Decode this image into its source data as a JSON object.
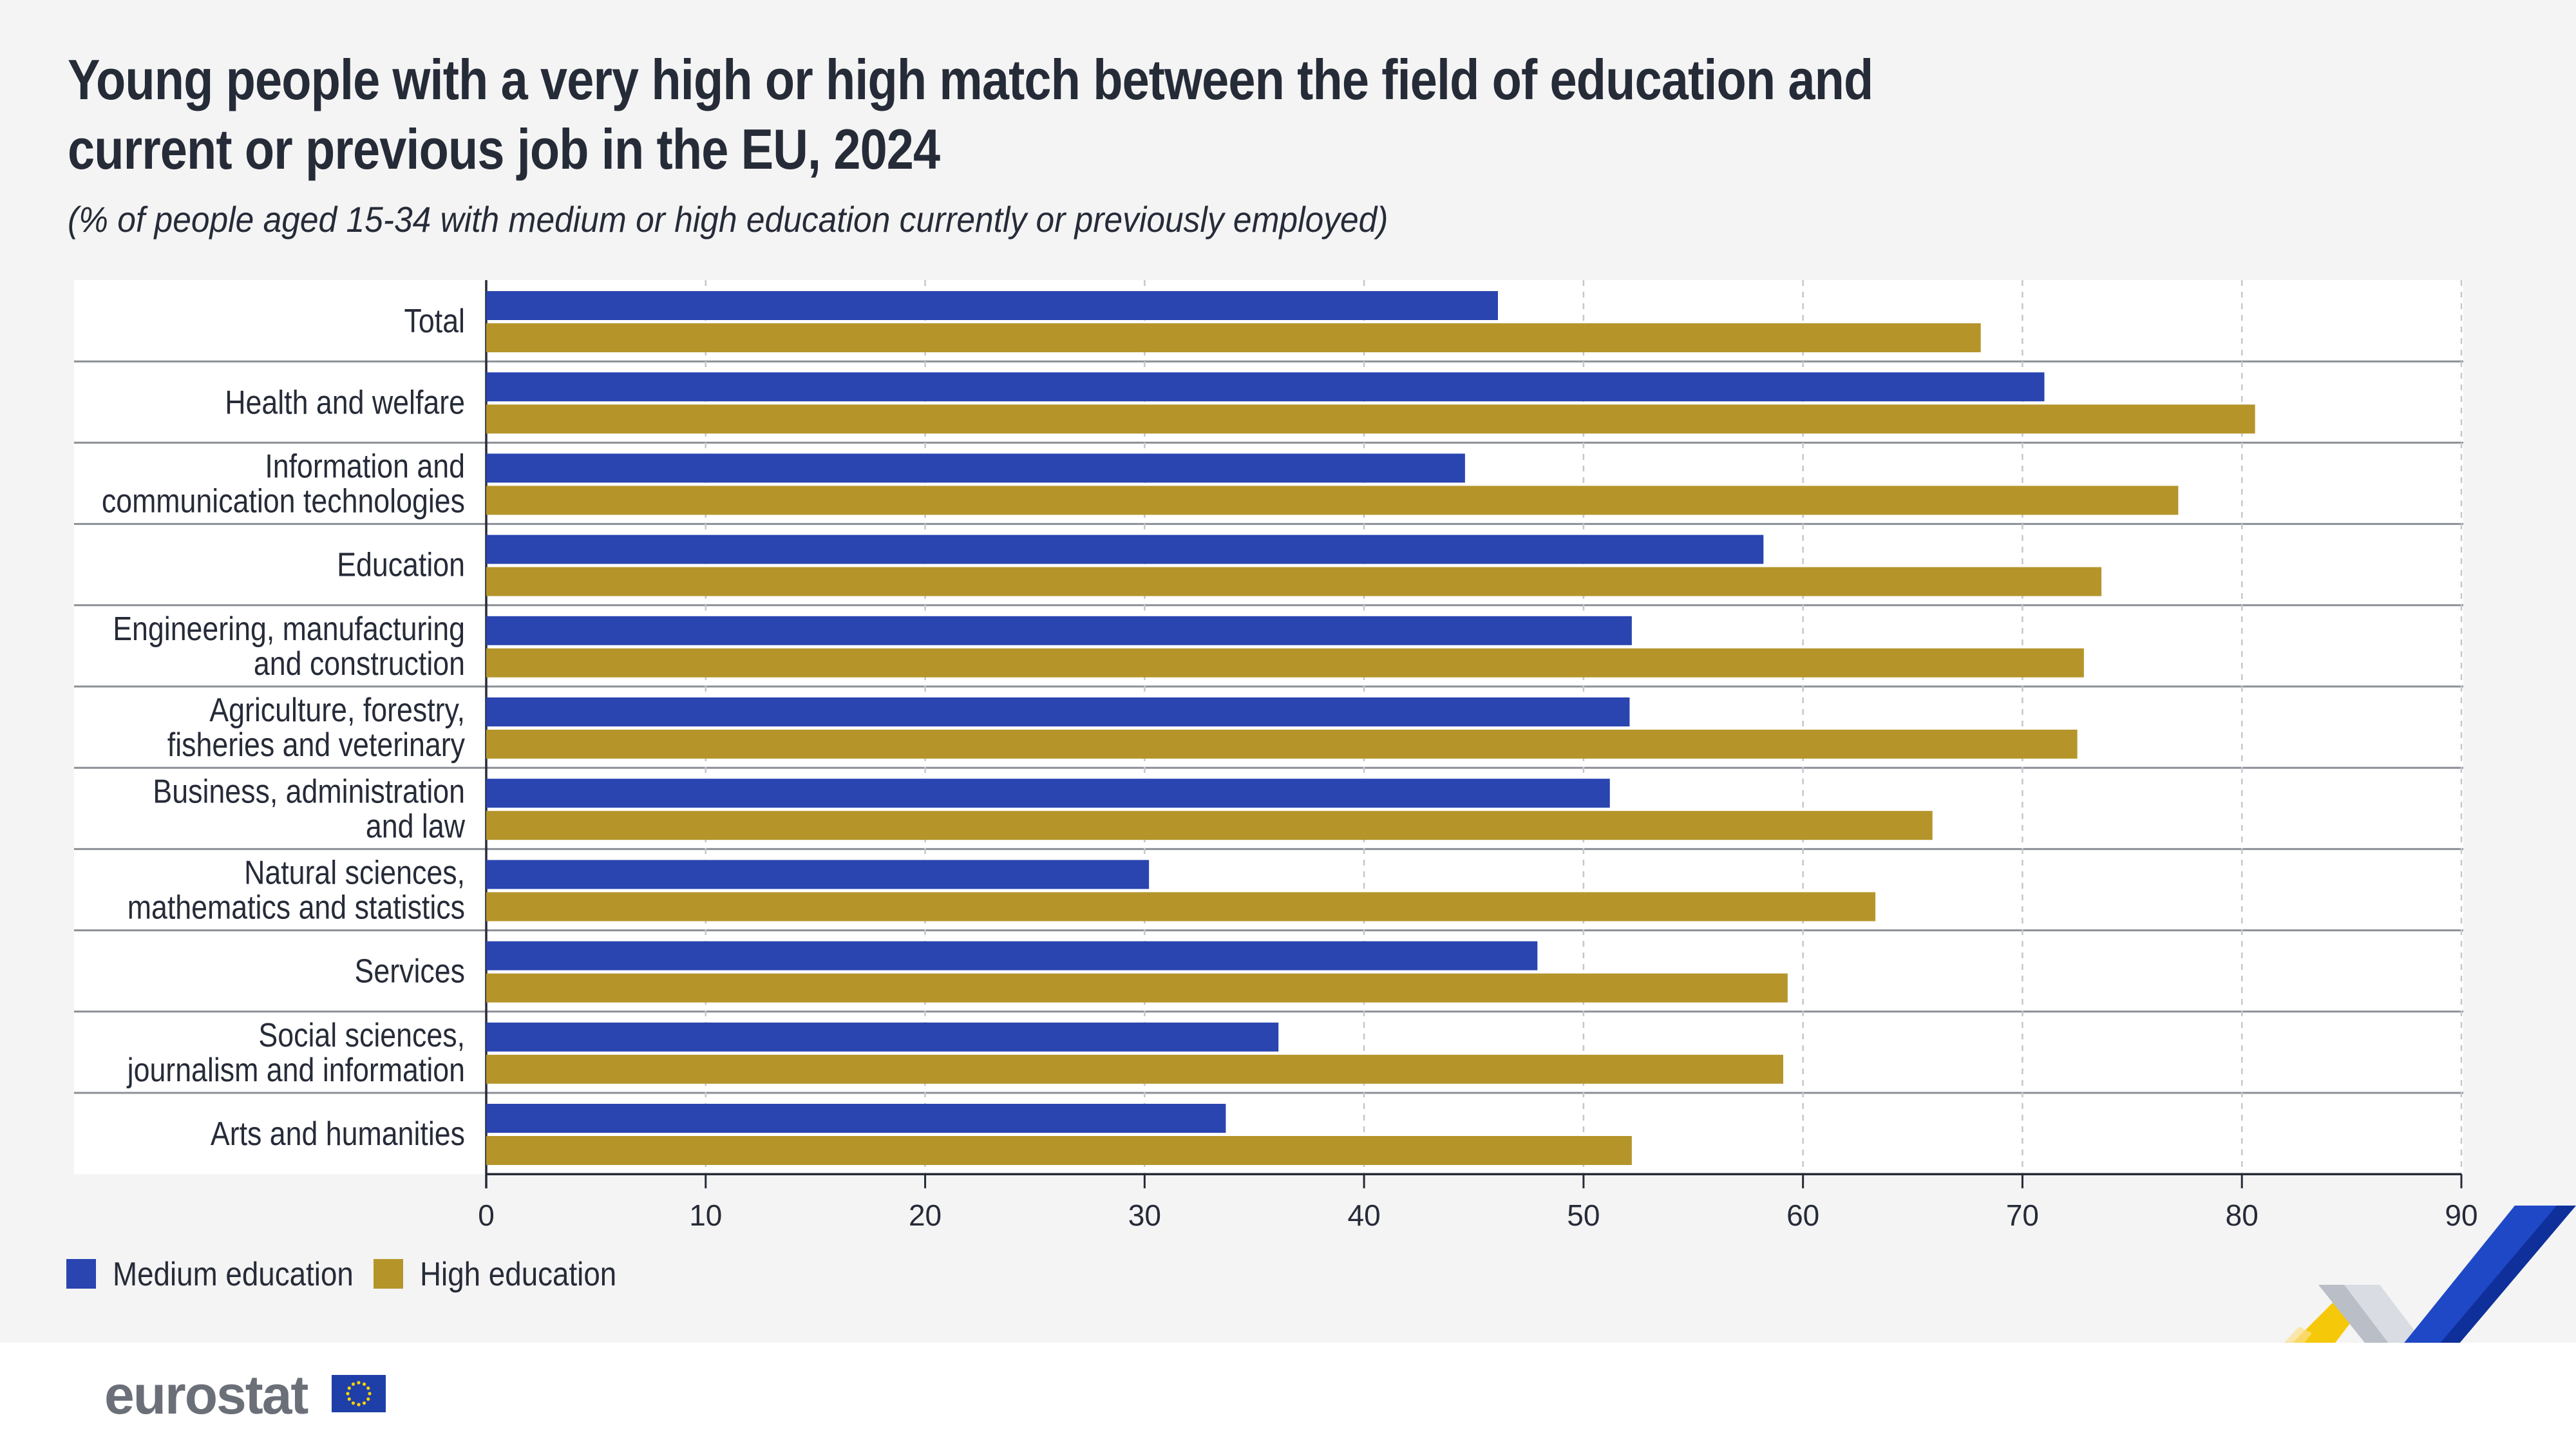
{
  "header": {
    "title": "Young people with a very high or high match between the field of education and current or previous job in the EU, 2024",
    "subtitle": "(% of people aged 15-34 with medium or high education currently or previously employed)"
  },
  "colors": {
    "medium": "#2a45b0",
    "high": "#b5952a",
    "background": "#f4f4f4",
    "text": "#262b38"
  },
  "chart_data": {
    "type": "bar",
    "orientation": "horizontal",
    "categories": [
      "Total",
      "Health and welfare",
      "Information and communication technologies",
      "Education",
      "Engineering, manufacturing and construction",
      "Agriculture, forestry, fisheries and veterinary",
      "Business, administration and law",
      "Natural sciences, mathematics and statistics",
      "Services",
      "Social sciences, journalism and information",
      "Arts and humanities"
    ],
    "category_lines": [
      [
        "Total"
      ],
      [
        "Health and welfare"
      ],
      [
        "Information and",
        "communication technologies"
      ],
      [
        "Education"
      ],
      [
        "Engineering, manufacturing",
        "and construction"
      ],
      [
        "Agriculture, forestry,",
        "fisheries and veterinary"
      ],
      [
        "Business, administration",
        "and law"
      ],
      [
        "Natural sciences,",
        "mathematics and statistics"
      ],
      [
        "Services"
      ],
      [
        "Social sciences,",
        "journalism and information"
      ],
      [
        "Arts and humanities"
      ]
    ],
    "series": [
      {
        "name": "Medium education",
        "values": [
          46.1,
          71.0,
          44.6,
          58.2,
          52.2,
          52.1,
          51.2,
          30.2,
          47.9,
          36.1,
          33.7
        ]
      },
      {
        "name": "High education",
        "values": [
          68.1,
          80.6,
          77.1,
          73.6,
          72.8,
          72.5,
          65.9,
          63.3,
          59.3,
          59.1,
          52.2
        ]
      }
    ],
    "xlim": [
      0,
      90
    ],
    "xticks": [
      "0",
      "10",
      "20",
      "30",
      "40",
      "50",
      "60",
      "70",
      "80",
      "90"
    ],
    "grid": true,
    "legend": "bottom-left"
  },
  "footer": {
    "brand": "eurostat",
    "logo_icon": "eu-flag-icon"
  }
}
